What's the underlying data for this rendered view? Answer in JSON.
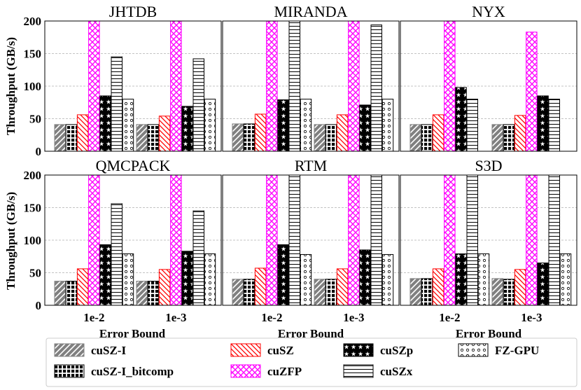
{
  "chart_data": {
    "type": "bar",
    "ylabel": "Throughput (GB/s)",
    "xlabel": "Error Bound",
    "ylim": [
      0,
      200
    ],
    "yticks": [
      "0",
      "50",
      "100",
      "150",
      "200"
    ],
    "categories": [
      "1e-2",
      "1e-3"
    ],
    "grid": "horizontal dashed",
    "legend_position": "bottom",
    "series_names": [
      "cuSZ-I",
      "cuSZ-I_bitcomp",
      "cuSZ",
      "cuZFP",
      "cuSZp",
      "cuSZx",
      "FZ-GPU"
    ],
    "series_colors": [
      "#808080",
      "#000000",
      "#ff0000",
      "#ff00ff",
      "#000000",
      "#000000",
      "#000000"
    ],
    "panels": [
      {
        "title": "JHTDB",
        "values": {
          "cuSZ-I": [
            41,
            41
          ],
          "cuSZ-I_bitcomp": [
            41,
            41
          ],
          "cuSZ": [
            56,
            54
          ],
          "cuZFP": [
            200,
            200
          ],
          "cuSZp": [
            85,
            69
          ],
          "cuSZx": [
            145,
            142
          ],
          "FZ-GPU": [
            80,
            80
          ]
        }
      },
      {
        "title": "MIRANDA",
        "values": {
          "cuSZ-I": [
            42,
            41
          ],
          "cuSZ-I_bitcomp": [
            42,
            41
          ],
          "cuSZ": [
            57,
            56
          ],
          "cuZFP": [
            200,
            200
          ],
          "cuSZp": [
            79,
            71
          ],
          "cuSZx": [
            200,
            194
          ],
          "FZ-GPU": [
            80,
            80
          ]
        }
      },
      {
        "title": "NYX",
        "values": {
          "cuSZ-I": [
            41,
            41
          ],
          "cuSZ-I_bitcomp": [
            41,
            41
          ],
          "cuSZ": [
            56,
            55
          ],
          "cuZFP": [
            200,
            183
          ],
          "cuSZp": [
            98,
            85
          ],
          "cuSZx": [
            80,
            80
          ],
          "FZ-GPU": [
            0,
            0
          ]
        }
      },
      {
        "title": "QMCPACK",
        "values": {
          "cuSZ-I": [
            37,
            37
          ],
          "cuSZ-I_bitcomp": [
            37,
            37
          ],
          "cuSZ": [
            56,
            55
          ],
          "cuZFP": [
            200,
            200
          ],
          "cuSZp": [
            93,
            83
          ],
          "cuSZx": [
            156,
            145
          ],
          "FZ-GPU": [
            79,
            79
          ]
        }
      },
      {
        "title": "RTM",
        "values": {
          "cuSZ-I": [
            40,
            40
          ],
          "cuSZ-I_bitcomp": [
            40,
            40
          ],
          "cuSZ": [
            57,
            56
          ],
          "cuZFP": [
            200,
            200
          ],
          "cuSZp": [
            93,
            85
          ],
          "cuSZx": [
            200,
            200
          ],
          "FZ-GPU": [
            78,
            78
          ]
        }
      },
      {
        "title": "S3D",
        "values": {
          "cuSZ-I": [
            41,
            41
          ],
          "cuSZ-I_bitcomp": [
            41,
            40
          ],
          "cuSZ": [
            56,
            55
          ],
          "cuZFP": [
            200,
            200
          ],
          "cuSZp": [
            79,
            65
          ],
          "cuSZx": [
            200,
            200
          ],
          "FZ-GPU": [
            79,
            79
          ]
        }
      }
    ]
  }
}
